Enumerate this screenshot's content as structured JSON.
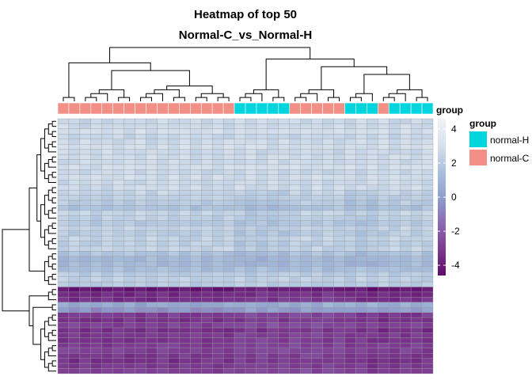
{
  "chart_data": {
    "type": "heatmap",
    "title_line1": "Heatmap of top 50",
    "title_line2": "Normal-C_vs_Normal-H",
    "n_rows": 50,
    "n_cols": 34,
    "colorbar": {
      "ticks": [
        4,
        2,
        0,
        -2,
        -4
      ],
      "min": -4.6,
      "max": 4.6,
      "stops": [
        {
          "v": -4.6,
          "c": "#5e0a6a"
        },
        {
          "v": -3.0,
          "c": "#7d3c91"
        },
        {
          "v": -1.5,
          "c": "#8b6bb2"
        },
        {
          "v": 0.0,
          "c": "#8f9fcc"
        },
        {
          "v": 1.5,
          "c": "#a9c0dc"
        },
        {
          "v": 3.0,
          "c": "#d5e0ec"
        },
        {
          "v": 4.6,
          "c": "#f1f3f6"
        }
      ]
    },
    "annotation": {
      "title": "group",
      "legend_title": "group",
      "levels": [
        {
          "name": "normal-H",
          "color": "#00d4dc"
        },
        {
          "name": "normal-C",
          "color": "#f28f86"
        }
      ],
      "columns": [
        "C",
        "C",
        "C",
        "C",
        "C",
        "C",
        "C",
        "C",
        "C",
        "C",
        "C",
        "C",
        "C",
        "C",
        "C",
        "C",
        "H",
        "H",
        "H",
        "H",
        "H",
        "C",
        "C",
        "C",
        "C",
        "C",
        "H",
        "H",
        "H",
        "C",
        "H",
        "H",
        "H",
        "H"
      ]
    },
    "row_means": [
      2.6,
      2.7,
      2.9,
      2.5,
      2.7,
      2.9,
      2.6,
      2.8,
      2.7,
      2.9,
      2.6,
      2.8,
      2.6,
      2.7,
      2.4,
      2.2,
      2.0,
      1.6,
      2.4,
      2.2,
      1.9,
      2.3,
      2.1,
      2.4,
      2.2,
      2.4,
      1.6,
      1.2,
      1.2,
      1.4,
      2.0,
      2.2,
      2.0,
      -4.2,
      -3.6,
      -3.4,
      -3.2,
      -3.5,
      -3.0,
      -3.3,
      -2.8,
      -3.4,
      -3.1,
      -3.2,
      -3.0,
      -2.9,
      -3.2,
      -3.3,
      -3.1,
      -2.9
    ],
    "special_rows": {
      "36": 0.3,
      "37": -0.4
    }
  }
}
